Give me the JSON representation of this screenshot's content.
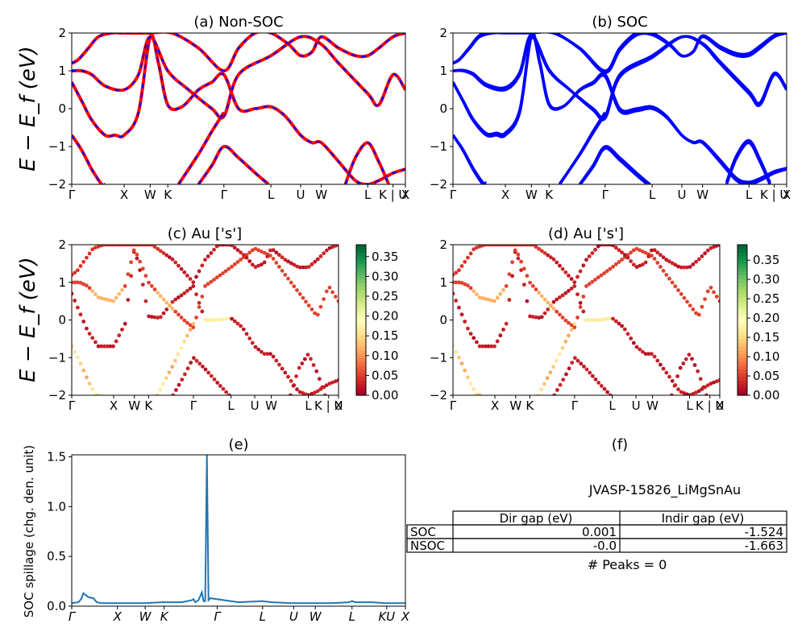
{
  "panel_titles": {
    "a": "(a) Non-SOC",
    "b": "(b) SOC",
    "c": "(c)  Au ['s']",
    "d": "(d) Au ['s']",
    "e": "(e)",
    "f": "(f)"
  },
  "energy_ylabel": "E − E_f (eV)",
  "spillage_ylabel": "SOC spillage (chg. den. unit)",
  "material_id": "JVASP-15826_LiMgSnAu",
  "gap_table": {
    "headers": [
      "",
      "Dir gap (eV)",
      "Indir gap (eV)"
    ],
    "rows": [
      {
        "label": "SOC",
        "dir": "0.001",
        "indir": "-1.524"
      },
      {
        "label": "NSOC",
        "dir": "-0.0",
        "indir": "-1.663"
      }
    ]
  },
  "peaks_text": "# Peaks = 0",
  "colors": {
    "nonsoc_line": "#ff0000",
    "nonsoc_dash": "#0000ff",
    "soc_line": "#0000ff",
    "spillage_line": "#1f77b4",
    "cmap": [
      "#a50026",
      "#d73027",
      "#f46d43",
      "#fdae61",
      "#fee08b",
      "#ffffbf",
      "#d9ef8b",
      "#a6d96a",
      "#66bd63",
      "#1a9850",
      "#006837"
    ]
  },
  "chart_data": [
    {
      "type": "line",
      "panel": "a",
      "title": "(a) Non-SOC",
      "ylabel": "E − E_f (eV)",
      "ylim": [
        -2,
        2
      ],
      "yticks": [
        "−2",
        "−1",
        "0",
        "1",
        "2"
      ],
      "kpath_labels": [
        "Γ",
        "X",
        "W",
        "K",
        "Γ",
        "L",
        "U",
        "W",
        "L",
        "K | U",
        "X"
      ],
      "kpath_positions": [
        0,
        0.157,
        0.235,
        0.288,
        0.456,
        0.597,
        0.686,
        0.748,
        0.887,
        0.963,
        1.0
      ],
      "bands": [
        {
          "x": [
            0,
            0.03,
            0.06,
            0.1,
            0.13,
            0.157,
            0.2,
            0.235,
            0.26,
            0.288,
            0.33,
            0.38,
            0.42,
            0.456,
            0.5,
            0.55,
            0.597,
            0.64,
            0.686,
            0.72,
            0.748,
            0.8,
            0.85,
            0.887,
            0.92,
            0.963,
            1.0
          ],
          "y": [
            0.7,
            0.2,
            -0.3,
            -0.7,
            -0.7,
            -0.7,
            -0.1,
            1.9,
            1.2,
            0.1,
            0.05,
            0.5,
            0.7,
            0.9,
            0.0,
            0.0,
            0.05,
            -0.2,
            -0.7,
            -0.9,
            -0.9,
            -1.4,
            -1.9,
            -2.0,
            -1.9,
            -1.7,
            -1.6
          ]
        },
        {
          "x": [
            0,
            0.03,
            0.06,
            0.1,
            0.157,
            0.2,
            0.235,
            0.288,
            0.35,
            0.42,
            0.456,
            0.5,
            0.597,
            0.686,
            0.748,
            0.8,
            0.887,
            0.92,
            0.963,
            1.0
          ],
          "y": [
            1.0,
            1.0,
            0.9,
            0.6,
            0.5,
            0.9,
            1.9,
            1.0,
            0.5,
            0.0,
            -0.2,
            0.9,
            1.4,
            1.9,
            1.7,
            1.2,
            0.4,
            0.1,
            0.9,
            0.5
          ]
        },
        {
          "x": [
            0,
            0.02,
            0.05,
            0.08,
            0.12,
            0.157,
            0.2,
            0.235,
            0.3,
            0.38,
            0.456,
            0.5,
            0.55,
            0.597,
            0.65,
            0.686,
            0.72,
            0.748,
            0.8,
            0.85,
            0.887,
            0.92,
            0.963,
            1.0
          ],
          "y": [
            1.2,
            1.3,
            1.6,
            1.9,
            2.0,
            2.0,
            2.0,
            2.0,
            2.0,
            1.6,
            1.0,
            1.6,
            2.0,
            2.0,
            1.7,
            1.4,
            1.5,
            1.9,
            1.6,
            1.4,
            1.4,
            1.6,
            1.9,
            2.0
          ]
        },
        {
          "x": [
            0,
            0.03,
            0.06,
            0.09,
            0.1
          ],
          "y": [
            -0.7,
            -1.1,
            -1.6,
            -2.0,
            -2.0
          ]
        },
        {
          "x": [
            0.32,
            0.38,
            0.42,
            0.456
          ],
          "y": [
            -2.0,
            -1.2,
            -0.6,
            -0.1
          ]
        },
        {
          "x": [
            0.38,
            0.42,
            0.456,
            0.5,
            0.55,
            0.59
          ],
          "y": [
            -2.0,
            -1.5,
            -1.0,
            -1.3,
            -1.7,
            -2.0
          ]
        },
        {
          "x": [
            0.82,
            0.85,
            0.887,
            0.92,
            0.95
          ],
          "y": [
            -2.0,
            -1.3,
            -0.9,
            -1.4,
            -2.0
          ]
        }
      ]
    },
    {
      "type": "line",
      "panel": "b",
      "title": "(b) SOC",
      "ylabel": "",
      "ylim": [
        -2,
        2
      ],
      "yticks": [
        "−2",
        "−1",
        "0",
        "1",
        "2"
      ],
      "kpath_labels": [
        "Γ",
        "X",
        "W",
        "K",
        "Γ",
        "L",
        "U",
        "W",
        "L",
        "K | U",
        "X"
      ],
      "kpath_positions": [
        0,
        0.157,
        0.235,
        0.288,
        0.456,
        0.597,
        0.686,
        0.748,
        0.887,
        0.963,
        1.0
      ]
    },
    {
      "type": "scatter",
      "panel": "c",
      "title": "(c)  Au ['s']",
      "ylabel": "E − E_f (eV)",
      "ylim": [
        -2,
        2
      ],
      "yticks": [
        "−2",
        "−1",
        "0",
        "1",
        "2"
      ],
      "colorbar_range": [
        0.0,
        0.38
      ],
      "colorbar_ticks": [
        "0.00",
        "0.05",
        "0.10",
        "0.15",
        "0.20",
        "0.25",
        "0.30",
        "0.35"
      ],
      "kpath_labels": [
        "Γ",
        "X",
        "W",
        "K",
        "Γ",
        "L",
        "U",
        "W",
        "L",
        "K | U",
        "X"
      ],
      "kpath_positions": [
        0,
        0.157,
        0.235,
        0.288,
        0.456,
        0.597,
        0.686,
        0.748,
        0.887,
        0.963,
        1.0
      ]
    },
    {
      "type": "scatter",
      "panel": "d",
      "title": "(d) Au ['s']",
      "ylabel": "",
      "ylim": [
        -2,
        2
      ],
      "yticks": [
        "−2",
        "−1",
        "0",
        "1",
        "2"
      ],
      "colorbar_range": [
        0.0,
        0.39
      ],
      "colorbar_ticks": [
        "0.00",
        "0.05",
        "0.10",
        "0.15",
        "0.20",
        "0.25",
        "0.30",
        "0.35"
      ],
      "kpath_labels": [
        "Γ",
        "X",
        "W",
        "K",
        "Γ",
        "L",
        "U",
        "W",
        "L",
        "K | U",
        "X"
      ],
      "kpath_positions": [
        0,
        0.157,
        0.235,
        0.288,
        0.456,
        0.597,
        0.686,
        0.748,
        0.887,
        0.963,
        1.0
      ]
    },
    {
      "type": "line",
      "panel": "e",
      "title": "(e)",
      "ylabel": "SOC spillage (chg. den. unit)",
      "ylim": [
        0,
        1.52
      ],
      "yticks": [
        "0.0",
        "0.5",
        "1.0",
        "1.5"
      ],
      "kpath_labels": [
        "Γ",
        "X",
        "W",
        "K",
        "Γ",
        "L",
        "U",
        "W",
        "L",
        "KU",
        "X"
      ],
      "kpath_positions": [
        0,
        0.137,
        0.22,
        0.277,
        0.436,
        0.572,
        0.665,
        0.73,
        0.84,
        0.944,
        1.0
      ],
      "series": [
        {
          "x": [
            0,
            0.02,
            0.028,
            0.035,
            0.05,
            0.065,
            0.075,
            0.09,
            0.13,
            0.18,
            0.22,
            0.27,
            0.33,
            0.36,
            0.365,
            0.37,
            0.38,
            0.39,
            0.395,
            0.4,
            0.405,
            0.41,
            0.415,
            0.5,
            0.57,
            0.6,
            0.66,
            0.72,
            0.78,
            0.83,
            0.84,
            0.85,
            0.9,
            0.94,
            0.97,
            1.0
          ],
          "y": [
            0.03,
            0.04,
            0.07,
            0.13,
            0.09,
            0.08,
            0.04,
            0.03,
            0.03,
            0.03,
            0.03,
            0.04,
            0.04,
            0.06,
            0.07,
            0.04,
            0.06,
            0.14,
            0.05,
            0.05,
            1.52,
            0.06,
            0.08,
            0.04,
            0.05,
            0.04,
            0.03,
            0.03,
            0.03,
            0.04,
            0.05,
            0.04,
            0.04,
            0.03,
            0.03,
            0.03
          ]
        }
      ]
    }
  ]
}
